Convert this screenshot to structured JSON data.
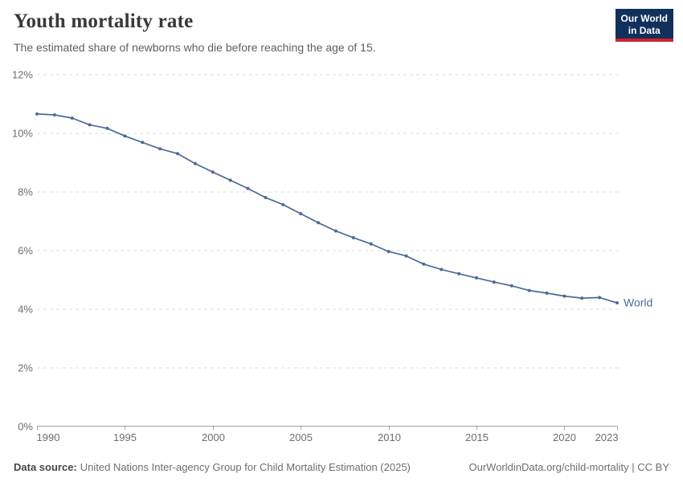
{
  "header": {
    "title": "Youth mortality rate",
    "subtitle": "The estimated share of newborns who die before reaching the age of 15.",
    "logo": {
      "line1": "Our World",
      "line2": "in Data"
    }
  },
  "chart_data": {
    "type": "line",
    "title": "Youth mortality rate",
    "xlabel": "",
    "ylabel": "",
    "xlim": [
      1990,
      2023
    ],
    "ylim": [
      0,
      12
    ],
    "grid": "horizontal-dashed",
    "legend_position": "end-of-line-label",
    "end_label": "World",
    "y_ticks": [
      {
        "v": 0,
        "label": "0%"
      },
      {
        "v": 2,
        "label": "2%"
      },
      {
        "v": 4,
        "label": "4%"
      },
      {
        "v": 6,
        "label": "6%"
      },
      {
        "v": 8,
        "label": "8%"
      },
      {
        "v": 10,
        "label": "10%"
      },
      {
        "v": 12,
        "label": "12%"
      }
    ],
    "x_ticks": [
      {
        "v": 1990,
        "label": "1990"
      },
      {
        "v": 1995,
        "label": "1995"
      },
      {
        "v": 2000,
        "label": "2000"
      },
      {
        "v": 2005,
        "label": "2005"
      },
      {
        "v": 2010,
        "label": "2010"
      },
      {
        "v": 2015,
        "label": "2015"
      },
      {
        "v": 2020,
        "label": "2020"
      },
      {
        "v": 2023,
        "label": "2023"
      }
    ],
    "years": [
      1990,
      1991,
      1992,
      1993,
      1994,
      1995,
      1996,
      1997,
      1998,
      1999,
      2000,
      2001,
      2002,
      2003,
      2004,
      2005,
      2006,
      2007,
      2008,
      2009,
      2010,
      2011,
      2012,
      2013,
      2014,
      2015,
      2016,
      2017,
      2018,
      2019,
      2020,
      2021,
      2022,
      2023
    ],
    "series": [
      {
        "name": "World",
        "color": "#4C6A9C",
        "values": [
          10.66,
          10.63,
          10.52,
          10.29,
          10.17,
          9.91,
          9.69,
          9.47,
          9.31,
          8.97,
          8.68,
          8.4,
          8.12,
          7.81,
          7.57,
          7.26,
          6.95,
          6.67,
          6.44,
          6.23,
          5.97,
          5.82,
          5.54,
          5.36,
          5.21,
          5.07,
          4.93,
          4.8,
          4.64,
          4.55,
          4.45,
          4.38,
          4.4,
          4.22
        ]
      }
    ]
  },
  "footer": {
    "data_source_label": "Data source:",
    "data_source_value": "United Nations Inter-agency Group for Child Mortality Estimation (2025)",
    "credit": "OurWorldinData.org/child-mortality | CC BY"
  },
  "colors": {
    "line": "#4C6A9C",
    "gridline": "#dcdcdc",
    "axis": "#a3a3a3",
    "tick_text": "#6e6e6e",
    "logo_bg": "#12305c",
    "logo_accent": "#cd2431"
  }
}
